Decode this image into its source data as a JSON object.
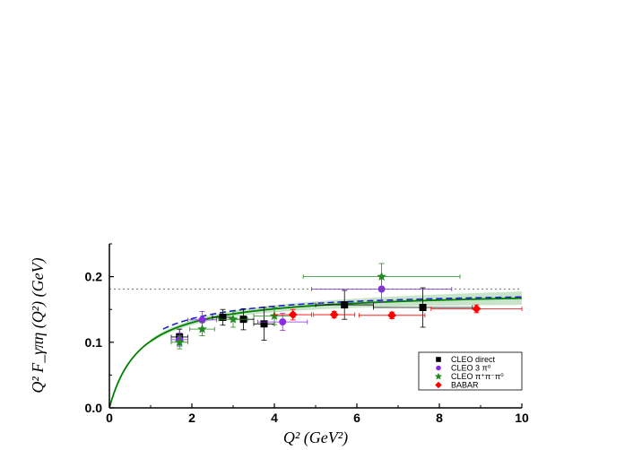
{
  "chart_data": {
    "type": "scatter",
    "xlabel": "Q² (GeV²)",
    "ylabel": "Q² F_γπη (Q²) (GeV)",
    "xlim": [
      0,
      10
    ],
    "ylim": [
      0,
      0.25
    ],
    "x_ticks": [
      "0",
      "2",
      "4",
      "6",
      "8",
      "10"
    ],
    "y_ticks": [
      "0.0",
      "0.1",
      "0.2"
    ],
    "legend_position": "bottom-right",
    "series": [
      {
        "name": "CLEO direct",
        "marker": "square",
        "color": "#000000",
        "points": [
          {
            "x": 1.7,
            "y": 0.108,
            "xerr": 0.2,
            "yerr": 0.012
          },
          {
            "x": 2.75,
            "y": 0.138,
            "xerr": 0.25,
            "yerr": 0.012
          },
          {
            "x": 3.25,
            "y": 0.135,
            "xerr": 0.25,
            "yerr": 0.016
          },
          {
            "x": 3.75,
            "y": 0.128,
            "xerr": 0.25,
            "yerr": 0.025
          },
          {
            "x": 5.7,
            "y": 0.157,
            "xerr": 0.7,
            "yerr": 0.022
          },
          {
            "x": 7.6,
            "y": 0.153,
            "xerr": 1.2,
            "yerr": 0.03
          }
        ]
      },
      {
        "name": "CLEO 3 π⁰",
        "marker": "circle",
        "color": "#8a2be2",
        "points": [
          {
            "x": 1.7,
            "y": 0.104,
            "xerr": 0.2,
            "yerr": 0.01
          },
          {
            "x": 2.25,
            "y": 0.134,
            "xerr": 0.35,
            "yerr": 0.013
          },
          {
            "x": 4.2,
            "y": 0.131,
            "xerr": 0.6,
            "yerr": 0.013
          },
          {
            "x": 6.6,
            "y": 0.181,
            "xerr": 1.7,
            "yerr": 0.019
          }
        ]
      },
      {
        "name": "CLEO π⁺π⁻π⁰",
        "marker": "star",
        "color": "#228b22",
        "points": [
          {
            "x": 1.7,
            "y": 0.1,
            "xerr": 0.2,
            "yerr": 0.01
          },
          {
            "x": 2.25,
            "y": 0.12,
            "xerr": 0.3,
            "yerr": 0.01
          },
          {
            "x": 3.0,
            "y": 0.135,
            "xerr": 0.35,
            "yerr": 0.012
          },
          {
            "x": 4.0,
            "y": 0.14,
            "xerr": 0.5,
            "yerr": 0.013
          },
          {
            "x": 6.6,
            "y": 0.2,
            "xerr": 1.9,
            "yerr": 0.02
          }
        ]
      },
      {
        "name": "BABAR",
        "marker": "diamond",
        "color": "#ff0000",
        "points": [
          {
            "x": 4.45,
            "y": 0.142,
            "xerr": 0.45,
            "yerr": 0.008
          },
          {
            "x": 5.45,
            "y": 0.142,
            "xerr": 0.5,
            "yerr": 0.005
          },
          {
            "x": 6.85,
            "y": 0.141,
            "xerr": 0.8,
            "yerr": 0.005
          },
          {
            "x": 8.9,
            "y": 0.151,
            "xerr": 1.1,
            "yerr": 0.006
          }
        ]
      }
    ],
    "curves": [
      {
        "style": "solid",
        "color": "#008000"
      },
      {
        "style": "dashed",
        "color": "#2222cc"
      },
      {
        "style": "dotted",
        "color": "#888888",
        "y": 0.181
      }
    ],
    "band_color": "#9acd9a"
  }
}
